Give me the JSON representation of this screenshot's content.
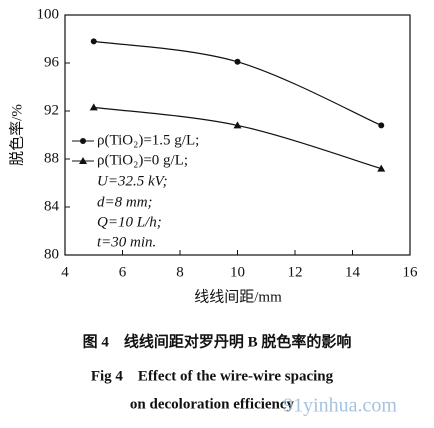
{
  "chart_data": {
    "type": "line",
    "xlabel": "线线间距/mm",
    "ylabel": "脱色率/%",
    "x": [
      5,
      10,
      15
    ],
    "series": [
      {
        "name": "ρ(TiO₂)=1.5 g/L;",
        "color": "#111111",
        "marker": "circle",
        "values": [
          97.8,
          96.1,
          90.8
        ]
      },
      {
        "name": "ρ(TiO₂)=0 g/L;",
        "color": "#111111",
        "marker": "triangle",
        "values": [
          92.3,
          90.8,
          87.2
        ]
      }
    ],
    "annotations": [
      "U=32.5 kV;",
      "d=8 mm;",
      "Q=10 L/h;",
      "t=30 min."
    ],
    "xlim": [
      4,
      16
    ],
    "xticks": [
      4,
      6,
      8,
      10,
      12,
      14,
      16
    ],
    "ylim": [
      80,
      100
    ],
    "yticks": [
      80,
      84,
      88,
      92,
      96,
      100
    ],
    "caption": [
      "图 4　线线间距对罗丹明 B 脱色率的影响",
      "Fig 4　Effect of the wire-wire spacing",
      "on decoloration efficiency"
    ],
    "watermark": "91yinhua.com"
  }
}
